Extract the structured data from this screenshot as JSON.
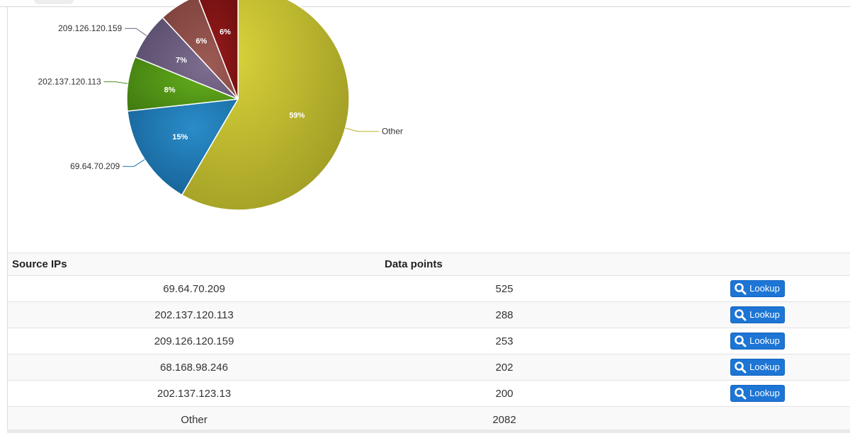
{
  "chart_data": {
    "type": "pie",
    "slices": [
      {
        "label": "Other",
        "value": 59,
        "pct_label": "59%",
        "color": "#b8b32c"
      },
      {
        "label": "69.64.70.209",
        "value": 15,
        "pct_label": "15%",
        "color": "#1d73ad"
      },
      {
        "label": "202.137.120.113",
        "value": 8,
        "pct_label": "8%",
        "color": "#4f8c17"
      },
      {
        "label": "209.126.120.159",
        "value": 7,
        "pct_label": "7%",
        "color": "#6c5d7d"
      },
      {
        "label": "68.168.98.246",
        "value": 6,
        "pct_label": "6%",
        "color": "#8f4f4a"
      },
      {
        "label": "202.137.123.13",
        "value": 6,
        "pct_label": "6%",
        "color": "#821414"
      }
    ],
    "visible_outside_labels": [
      "209.126.120.159",
      "202.137.120.113",
      "69.64.70.209",
      "Other"
    ]
  },
  "table": {
    "headers": {
      "source": "Source IPs",
      "points": "Data points"
    },
    "rows": [
      {
        "ip": "69.64.70.209",
        "points": "525",
        "lookup": "Lookup"
      },
      {
        "ip": "202.137.120.113",
        "points": "288",
        "lookup": "Lookup"
      },
      {
        "ip": "209.126.120.159",
        "points": "253",
        "lookup": "Lookup"
      },
      {
        "ip": "68.168.98.246",
        "points": "202",
        "lookup": "Lookup"
      },
      {
        "ip": "202.137.123.13",
        "points": "200",
        "lookup": "Lookup"
      },
      {
        "ip": "Other",
        "points": "2082",
        "lookup": ""
      }
    ]
  },
  "colors": {
    "button": "#1d75d5"
  },
  "icons": {
    "lookup": "search-icon"
  }
}
